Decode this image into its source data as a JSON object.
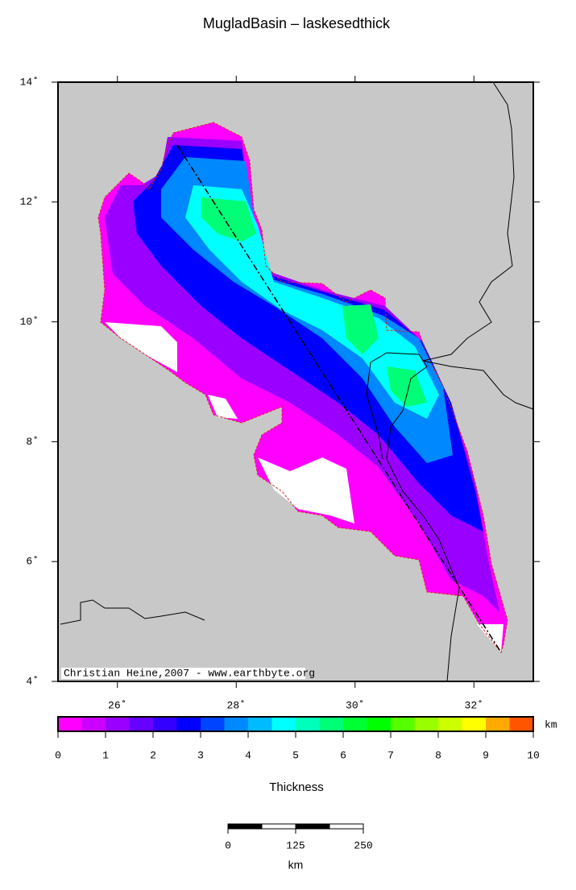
{
  "title": "MugladBasin – laskesedthick",
  "map": {
    "lonlim": [
      25,
      33
    ],
    "latlim": [
      4,
      14
    ],
    "lon_ticks": [
      {
        "value": 26,
        "label": "26˚"
      },
      {
        "value": 28,
        "label": "28˚"
      },
      {
        "value": 30,
        "label": "30˚"
      },
      {
        "value": 32,
        "label": "32˚"
      }
    ],
    "lat_ticks": [
      {
        "value": 4,
        "label": "4˚"
      },
      {
        "value": 6,
        "label": "6˚"
      },
      {
        "value": 8,
        "label": "8˚"
      },
      {
        "value": 10,
        "label": "10˚"
      },
      {
        "value": 12,
        "label": "12˚"
      },
      {
        "value": 14,
        "label": "14˚"
      }
    ],
    "credit": "Christian Heine,2007 - www.earthbyte.org"
  },
  "colorbar": {
    "label": "Thickness",
    "unit": "km",
    "lim": [
      0,
      10
    ],
    "ticks": [
      0,
      1,
      2,
      3,
      4,
      5,
      6,
      7,
      8,
      9,
      10
    ],
    "colors": [
      "#ff00ff",
      "#cc00ff",
      "#9900ff",
      "#6600ff",
      "#3300ff",
      "#0000ff",
      "#0044ff",
      "#0088ff",
      "#00bbff",
      "#00ffff",
      "#00ffbb",
      "#00ff77",
      "#00ff33",
      "#00ff00",
      "#55ff00",
      "#99ff00",
      "#ccff00",
      "#ffff00",
      "#ffaa00",
      "#ff5500"
    ]
  },
  "scalebar": {
    "ticks": [
      0,
      125,
      250
    ],
    "lim": [
      0,
      250
    ],
    "unit": "km"
  }
}
